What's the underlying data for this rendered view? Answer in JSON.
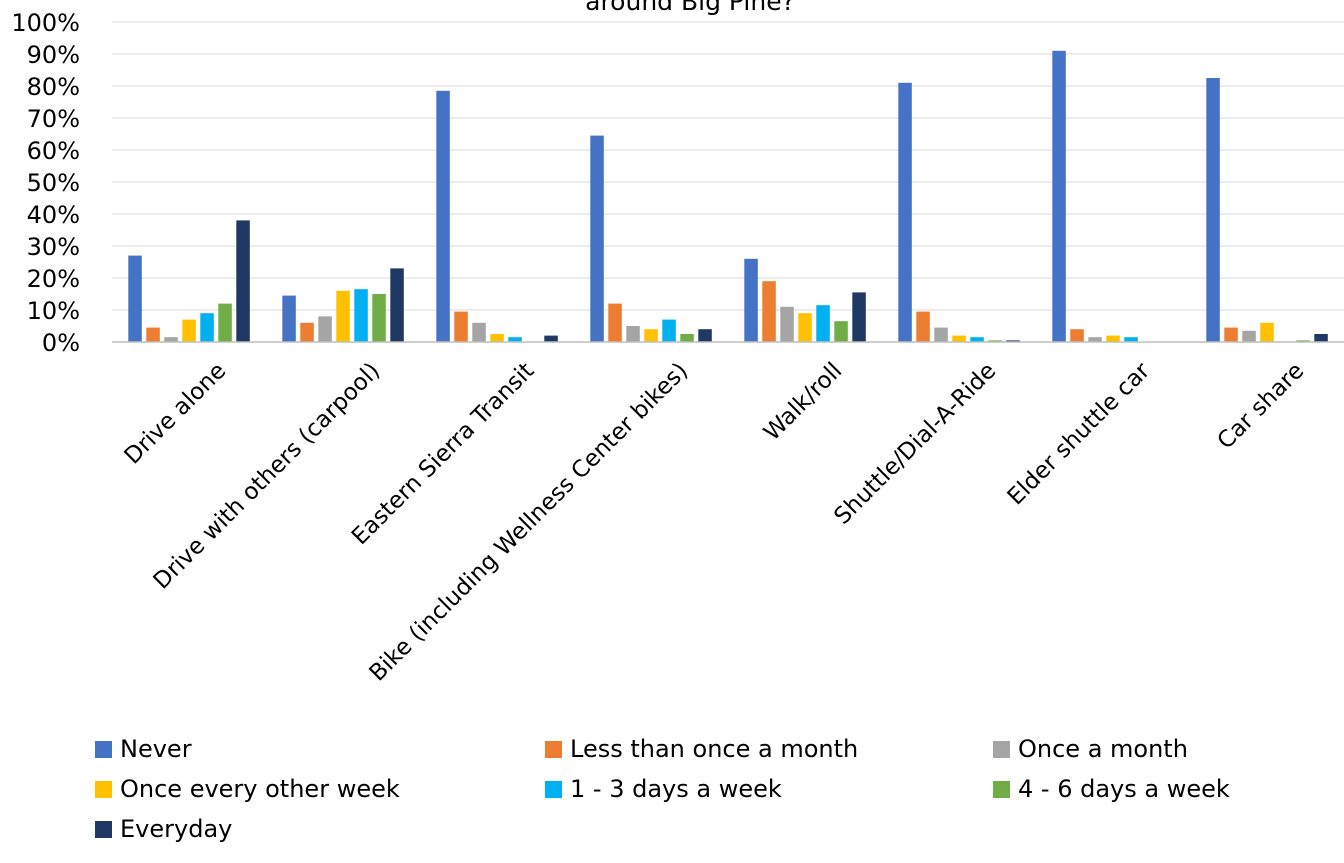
{
  "chart_data": {
    "type": "bar",
    "title": "around Big Pine?",
    "xlabel": "",
    "ylabel": "",
    "ylim": [
      0,
      100
    ],
    "y_ticks": [
      "0%",
      "10%",
      "20%",
      "30%",
      "40%",
      "50%",
      "60%",
      "70%",
      "80%",
      "90%",
      "100%"
    ],
    "grid": true,
    "legend_position": "bottom",
    "categories": [
      "Drive alone",
      "Drive with others (carpool)",
      "Eastern Sierra Transit",
      "Bike (including  Wellness Center bikes)",
      "Walk/roll",
      "Shuttle/Dial-A-Ride",
      "Elder shuttle car",
      "Car share"
    ],
    "series": [
      {
        "name": "Never",
        "color": "#4472C4",
        "values": [
          27,
          14.5,
          78.5,
          64.5,
          26,
          81,
          91,
          82.5
        ]
      },
      {
        "name": "Less than once a month",
        "color": "#ED7D31",
        "values": [
          4.5,
          6,
          9.5,
          12,
          19,
          9.5,
          4,
          4.5
        ]
      },
      {
        "name": "Once a month",
        "color": "#A5A5A5",
        "values": [
          1.5,
          8,
          6,
          5,
          11,
          4.5,
          1.5,
          3.5
        ]
      },
      {
        "name": "Once every other week",
        "color": "#FFC000",
        "values": [
          7,
          16,
          2.5,
          4,
          9,
          2,
          2,
          6
        ]
      },
      {
        "name": "1 - 3 days a week",
        "color": "#00B0F0",
        "values": [
          9,
          16.5,
          1.5,
          7,
          11.5,
          1.5,
          1.5,
          0
        ]
      },
      {
        "name": "4 - 6 days a week",
        "color": "#70AD47",
        "values": [
          12,
          15,
          0,
          2.5,
          6.5,
          0.5,
          0,
          0.5
        ]
      },
      {
        "name": "Everyday",
        "color": "#203864",
        "values": [
          38,
          23,
          2,
          4,
          15.5,
          0.5,
          0,
          2.5
        ]
      }
    ]
  }
}
